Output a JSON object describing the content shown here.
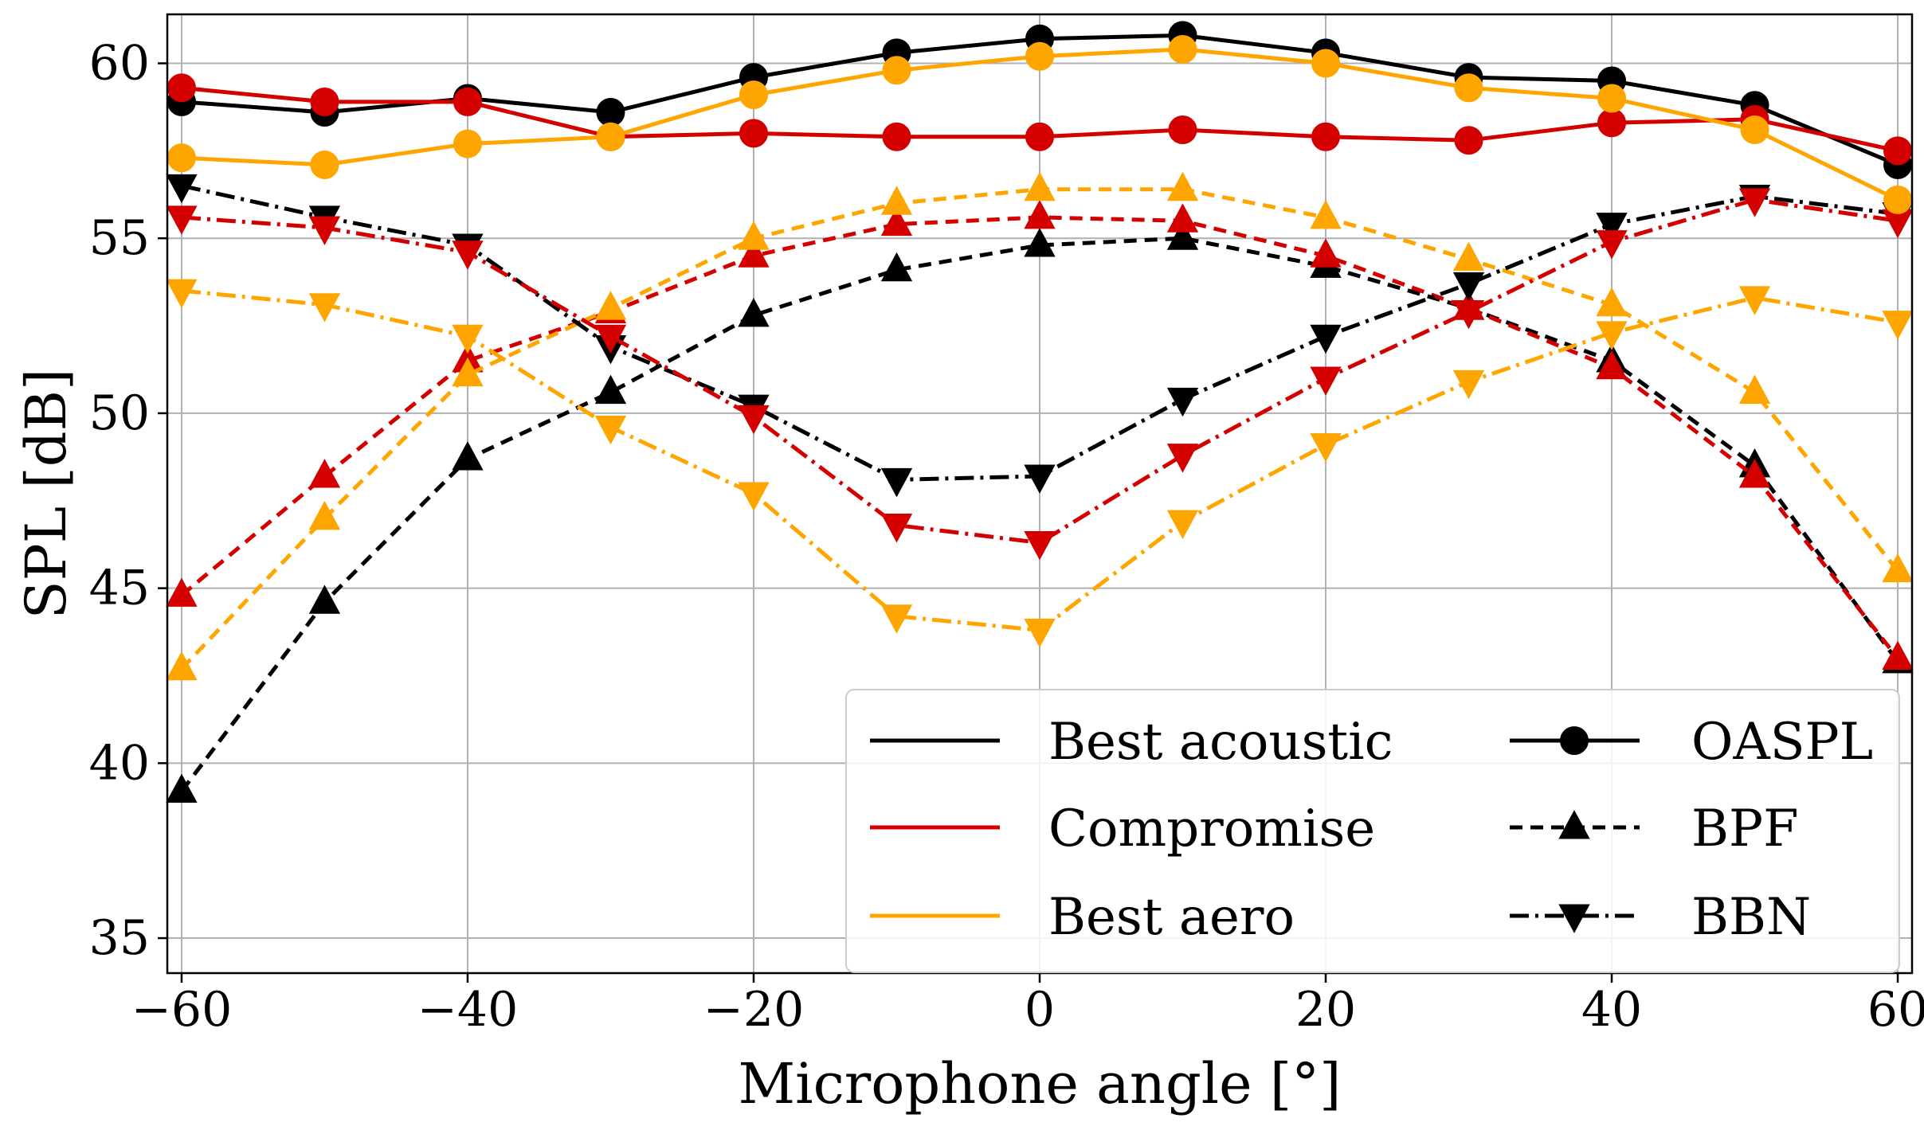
{
  "chart_data": {
    "type": "line",
    "title": "",
    "xlabel": "Microphone angle [°]",
    "ylabel": "SPL [dB]",
    "xlim": [
      -61,
      61
    ],
    "ylim": [
      34,
      61.4
    ],
    "xticks": [
      -60,
      -40,
      -20,
      0,
      20,
      40,
      60
    ],
    "xtick_labels": [
      "−60",
      "−40",
      "−20",
      "0",
      "20",
      "40",
      "60"
    ],
    "yticks": [
      35,
      40,
      45,
      50,
      55,
      60
    ],
    "ytick_labels": [
      "35",
      "40",
      "45",
      "50",
      "55",
      "60"
    ],
    "grid": true,
    "x": [
      -60,
      -50,
      -40,
      -30,
      -20,
      -10,
      0,
      10,
      20,
      30,
      40,
      50,
      60
    ],
    "colors": {
      "best_acoustic": "#000000",
      "compromise": "#d40000",
      "best_aero": "#ffa500"
    },
    "series": [
      {
        "name": "Best acoustic OASPL",
        "config": "best_acoustic",
        "metric": "OASPL",
        "values": [
          58.9,
          58.6,
          59.0,
          58.6,
          59.6,
          60.3,
          60.7,
          60.8,
          60.3,
          59.6,
          59.5,
          58.8,
          57.1
        ]
      },
      {
        "name": "Compromise OASPL",
        "config": "compromise",
        "metric": "OASPL",
        "values": [
          59.3,
          58.9,
          58.9,
          57.9,
          58.0,
          57.9,
          57.9,
          58.1,
          57.9,
          57.8,
          58.3,
          58.4,
          57.5
        ]
      },
      {
        "name": "Best aero OASPL",
        "config": "best_aero",
        "metric": "OASPL",
        "values": [
          57.3,
          57.1,
          57.7,
          57.9,
          59.1,
          59.8,
          60.2,
          60.4,
          60.0,
          59.3,
          59.0,
          58.1,
          56.1
        ]
      },
      {
        "name": "Best acoustic BPF",
        "config": "best_acoustic",
        "metric": "BPF",
        "values": [
          39.2,
          44.6,
          48.7,
          50.6,
          52.8,
          54.1,
          54.8,
          55.0,
          54.2,
          53.0,
          51.5,
          48.5,
          42.9
        ]
      },
      {
        "name": "Compromise BPF",
        "config": "compromise",
        "metric": "BPF",
        "values": [
          44.8,
          48.2,
          51.5,
          52.9,
          54.5,
          55.4,
          55.6,
          55.5,
          54.5,
          53.0,
          51.3,
          48.2,
          43.0
        ]
      },
      {
        "name": "Best aero BPF",
        "config": "best_aero",
        "metric": "BPF",
        "values": [
          42.7,
          47.0,
          51.1,
          53.0,
          55.0,
          56.0,
          56.4,
          56.4,
          55.6,
          54.4,
          53.1,
          50.6,
          45.5
        ]
      },
      {
        "name": "Best acoustic BBN",
        "config": "best_acoustic",
        "metric": "BBN",
        "values": [
          56.5,
          55.6,
          54.8,
          51.9,
          50.2,
          48.1,
          48.2,
          50.4,
          52.2,
          53.7,
          55.4,
          56.2,
          55.7
        ]
      },
      {
        "name": "Compromise BBN",
        "config": "compromise",
        "metric": "BBN",
        "values": [
          55.6,
          55.3,
          54.6,
          52.2,
          49.9,
          46.8,
          46.3,
          48.8,
          51.0,
          52.9,
          54.9,
          56.1,
          55.5
        ]
      },
      {
        "name": "Best aero BBN",
        "config": "best_aero",
        "metric": "BBN",
        "values": [
          53.5,
          53.1,
          52.2,
          49.6,
          47.7,
          44.2,
          43.8,
          46.9,
          49.1,
          50.9,
          52.3,
          53.3,
          52.6
        ]
      }
    ],
    "legend": {
      "placement": "bottom-right",
      "config_entries": [
        {
          "key": "best_acoustic",
          "label": "Best acoustic"
        },
        {
          "key": "compromise",
          "label": "Compromise"
        },
        {
          "key": "best_aero",
          "label": "Best aero"
        }
      ],
      "metric_entries": [
        {
          "key": "OASPL",
          "label": "OASPL"
        },
        {
          "key": "BPF",
          "label": "BPF"
        },
        {
          "key": "BBN",
          "label": "BBN"
        }
      ]
    }
  }
}
